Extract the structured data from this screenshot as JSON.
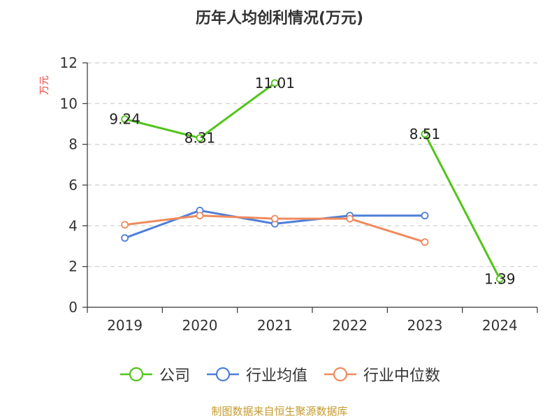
{
  "chart_data": {
    "type": "line",
    "title": "历年人均创利情况(万元)",
    "ylabel": "万元",
    "xlabel": "",
    "categories": [
      "2019",
      "2020",
      "2021",
      "2022",
      "2023",
      "2024"
    ],
    "ylim": [
      0,
      12
    ],
    "yticks": [
      "0",
      "2",
      "4",
      "6",
      "8",
      "10",
      "12"
    ],
    "grid": true,
    "legend_position": "bottom",
    "series": [
      {
        "name": "公司",
        "color": "#52c41a",
        "values": [
          9.24,
          8.31,
          11.01,
          null,
          8.51,
          1.39
        ],
        "labels": [
          "9.24",
          "8.31",
          "11.01",
          "",
          "8.51",
          "1.39"
        ]
      },
      {
        "name": "行业均值",
        "color": "#4f7ed8",
        "values": [
          3.4,
          4.75,
          4.1,
          4.5,
          4.5,
          null
        ]
      },
      {
        "name": "行业中位数",
        "color": "#f08a5d",
        "values": [
          4.05,
          4.5,
          4.35,
          4.35,
          3.2,
          null
        ]
      }
    ]
  },
  "footer": {
    "source": "制图数据来自恒生聚源数据库"
  }
}
